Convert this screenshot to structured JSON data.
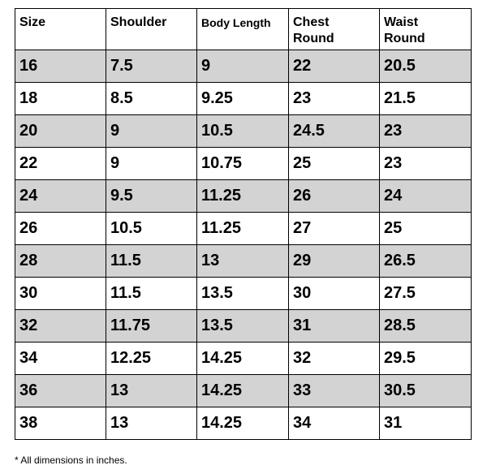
{
  "table": {
    "header": [
      "Size",
      "Shoulder",
      "Body Length",
      "Chest\nRound",
      "Waist\nRound"
    ],
    "rows": [
      [
        "16",
        "7.5",
        "9",
        "22",
        "20.5"
      ],
      [
        "18",
        "8.5",
        "9.25",
        "23",
        "21.5"
      ],
      [
        "20",
        "9",
        "10.5",
        "24.5",
        "23"
      ],
      [
        "22",
        "9",
        "10.75",
        "25",
        "23"
      ],
      [
        "24",
        "9.5",
        "11.25",
        "26",
        "24"
      ],
      [
        "26",
        "10.5",
        "11.25",
        "27",
        "25"
      ],
      [
        "28",
        "11.5",
        "13",
        "29",
        "26.5"
      ],
      [
        "30",
        "11.5",
        "13.5",
        "30",
        "27.5"
      ],
      [
        "32",
        "11.75",
        "13.5",
        "31",
        "28.5"
      ],
      [
        "34",
        "12.25",
        "14.25",
        "32",
        "29.5"
      ],
      [
        "36",
        "13",
        "14.25",
        "33",
        "30.5"
      ],
      [
        "38",
        "13",
        "14.25",
        "34",
        "31"
      ]
    ]
  },
  "footnote": "* All dimensions in inches."
}
